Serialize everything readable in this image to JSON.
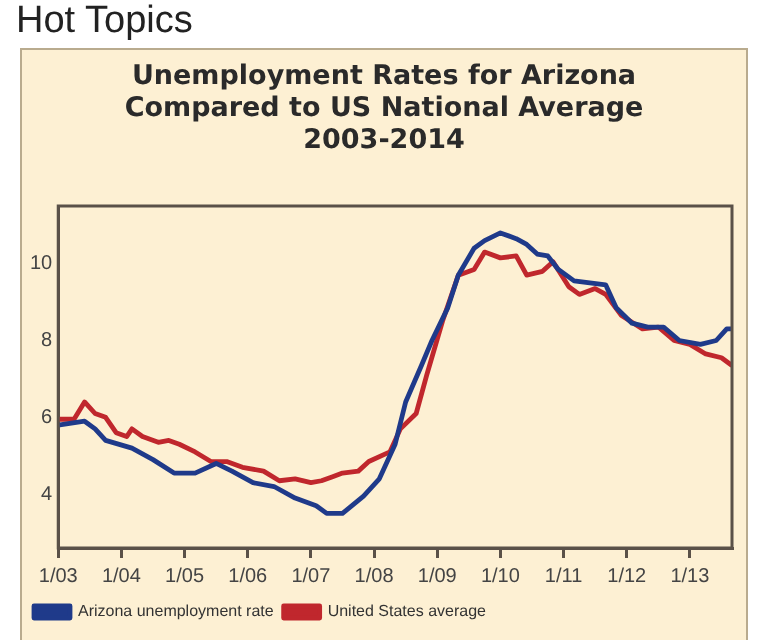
{
  "chart_data": {
    "type": "line",
    "title": "Unemployment Rates for Arizona Compared to US National Average 2003-2014",
    "annotations": [
      "Hot Topics"
    ],
    "xlim": [
      "2003-01",
      "2013-09"
    ],
    "xticks": [
      {
        "value": "2003-01",
        "label": "1/03"
      },
      {
        "value": "2004-01",
        "label": "1/04"
      },
      {
        "value": "2005-01",
        "label": "1/05"
      },
      {
        "value": "2006-01",
        "label": "1/06"
      },
      {
        "value": "2007-01",
        "label": "1/07"
      },
      {
        "value": "2008-01",
        "label": "1/08"
      },
      {
        "value": "2009-01",
        "label": "1/09"
      },
      {
        "value": "2010-01",
        "label": "1/10"
      },
      {
        "value": "2011-01",
        "label": "1/11"
      },
      {
        "value": "2012-01",
        "label": "1/12"
      },
      {
        "value": "2013-01",
        "label": "1/13"
      }
    ],
    "ylim": [
      2.6,
      11.5
    ],
    "yticks": [
      4,
      6,
      8,
      10
    ],
    "grid": false,
    "legend": "bottom left",
    "marker": "none",
    "line_style": "solid",
    "series": [
      {
        "name": "Arizona unemployment rate",
        "color": "#1f3a8a",
        "x": [
          "2003-01",
          "2003-06",
          "2003-08",
          "2003-10",
          "2004-03",
          "2004-07",
          "2004-11",
          "2005-03",
          "2005-07",
          "2005-10",
          "2006-02",
          "2006-06",
          "2006-10",
          "2007-02",
          "2007-04",
          "2007-07",
          "2007-11",
          "2008-02",
          "2008-05",
          "2008-07",
          "2008-10",
          "2008-12",
          "2009-03",
          "2009-05",
          "2009-08",
          "2009-10",
          "2010-01",
          "2010-04",
          "2010-06",
          "2010-08",
          "2010-10",
          "2010-12",
          "2011-03",
          "2011-06",
          "2011-09",
          "2011-11",
          "2012-02",
          "2012-05",
          "2012-08",
          "2012-11",
          "2013-03",
          "2013-06",
          "2013-08",
          "2013-09"
        ],
        "values": [
          5.8,
          5.9,
          5.7,
          5.4,
          5.2,
          4.9,
          4.55,
          4.55,
          4.8,
          4.6,
          4.3,
          4.2,
          3.9,
          3.7,
          3.5,
          3.5,
          3.95,
          4.4,
          5.3,
          6.4,
          7.35,
          8.0,
          8.85,
          9.7,
          10.4,
          10.6,
          10.8,
          10.65,
          10.5,
          10.25,
          10.2,
          9.85,
          9.55,
          9.5,
          9.45,
          8.85,
          8.45,
          8.35,
          8.35,
          8.0,
          7.9,
          8.0,
          8.3,
          8.3
        ]
      },
      {
        "name": "United States average",
        "color": "#c0272d",
        "x": [
          "2003-01",
          "2003-04",
          "2003-06",
          "2003-08",
          "2003-10",
          "2003-12",
          "2004-02",
          "2004-03",
          "2004-05",
          "2004-08",
          "2004-10",
          "2004-12",
          "2005-03",
          "2005-06",
          "2005-09",
          "2005-12",
          "2006-04",
          "2006-07",
          "2006-10",
          "2007-01",
          "2007-03",
          "2007-05",
          "2007-07",
          "2007-10",
          "2007-12",
          "2008-04",
          "2008-06",
          "2008-09",
          "2008-11",
          "2009-02",
          "2009-05",
          "2009-08",
          "2009-10",
          "2010-01",
          "2010-04",
          "2010-06",
          "2010-09",
          "2010-11",
          "2011-02",
          "2011-04",
          "2011-07",
          "2011-09",
          "2011-12",
          "2012-04",
          "2012-07",
          "2012-10",
          "2013-01",
          "2013-04",
          "2013-07",
          "2013-09"
        ],
        "values": [
          5.95,
          5.95,
          6.4,
          6.1,
          6.0,
          5.6,
          5.5,
          5.7,
          5.5,
          5.35,
          5.4,
          5.3,
          5.1,
          4.85,
          4.85,
          4.7,
          4.6,
          4.35,
          4.4,
          4.3,
          4.35,
          4.45,
          4.55,
          4.6,
          4.85,
          5.1,
          5.7,
          6.1,
          7.1,
          8.5,
          9.7,
          9.85,
          10.3,
          10.15,
          10.2,
          9.7,
          9.8,
          10.05,
          9.4,
          9.2,
          9.35,
          9.2,
          8.65,
          8.3,
          8.35,
          8.0,
          7.9,
          7.65,
          7.55,
          7.35
        ]
      }
    ]
  }
}
